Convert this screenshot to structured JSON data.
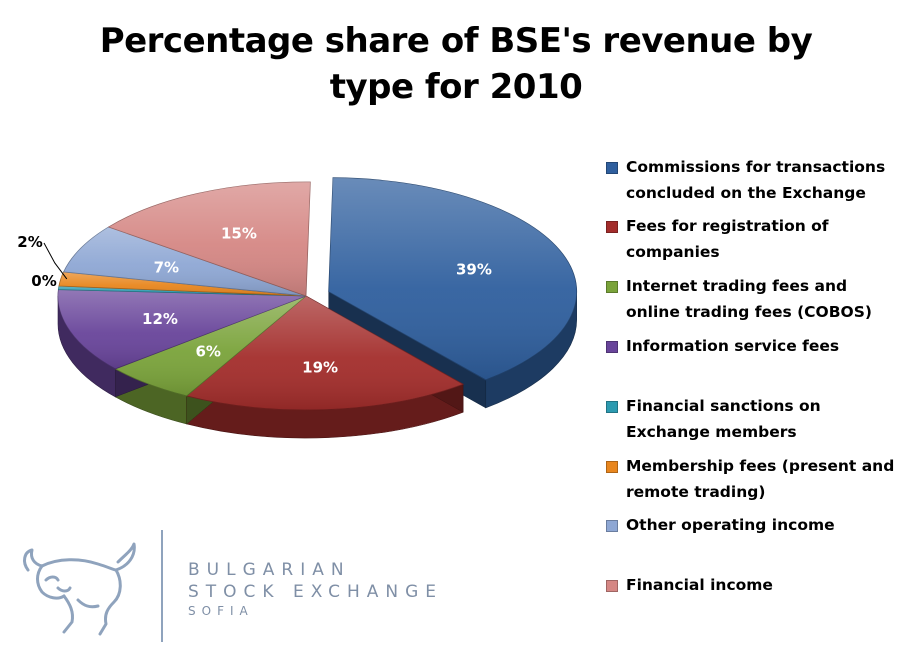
{
  "title_lines": [
    "Percentage share of BSE's revenue by",
    "type for 2010"
  ],
  "chart_data": {
    "type": "pie",
    "title": "Percentage share of BSE's revenue by type for 2010",
    "series": [
      {
        "name": "Commissions for transactions concluded on the Exchange",
        "value": 39,
        "label": "39%",
        "color": "#2f5f9e",
        "exploded": true
      },
      {
        "name": "Fees for registration of companies",
        "value": 19,
        "label": "19%",
        "color": "#a32d2b",
        "exploded": false
      },
      {
        "name": "Internet trading fees and online trading fees (COBOS)",
        "value": 6,
        "label": "6%",
        "color": "#7aa33a",
        "exploded": false
      },
      {
        "name": "Information service fees",
        "value": 12,
        "label": "12%",
        "color": "#68449a",
        "exploded": false
      },
      {
        "name": "Financial sanctions  on Exchange members",
        "value": 0.5,
        "label": "0%",
        "color": "#2c9ab0",
        "exploded": false
      },
      {
        "name": "Membership fees (present and remote trading)",
        "value": 2,
        "label": "2%",
        "color": "#e8861e",
        "exploded": false
      },
      {
        "name": "Other operating income",
        "value": 7,
        "label": "7%",
        "color": "#8ea7d4",
        "exploded": false
      },
      {
        "name": "Financial income",
        "value": 15,
        "label": "15%",
        "color": "#d58784",
        "exploded": false
      }
    ],
    "legend_position": "right"
  },
  "legend": [
    {
      "text": "Commissions for transactions\nconcluded on the Exchange",
      "color": "#2f5f9e"
    },
    {
      "text": "Fees for registration of\ncompanies",
      "color": "#a32d2b"
    },
    {
      "text": "Internet trading fees and\nonline trading fees (COBOS)",
      "color": "#7aa33a"
    },
    {
      "text": "Information service fees",
      "color": "#68449a"
    },
    {
      "text": "Financial sanctions  on\nExchange members",
      "color": "#2c9ab0"
    },
    {
      "text": "Membership fees (present and\nremote trading)",
      "color": "#e8861e"
    },
    {
      "text": "Other operating income",
      "color": "#8ea7d4"
    },
    {
      "text": "Financial income",
      "color": "#d58784"
    }
  ],
  "logo": {
    "line1": "BULGARIAN",
    "line2": "STOCK EXCHANGE",
    "line3": "SOFIA",
    "color": "#7f8fa6"
  }
}
